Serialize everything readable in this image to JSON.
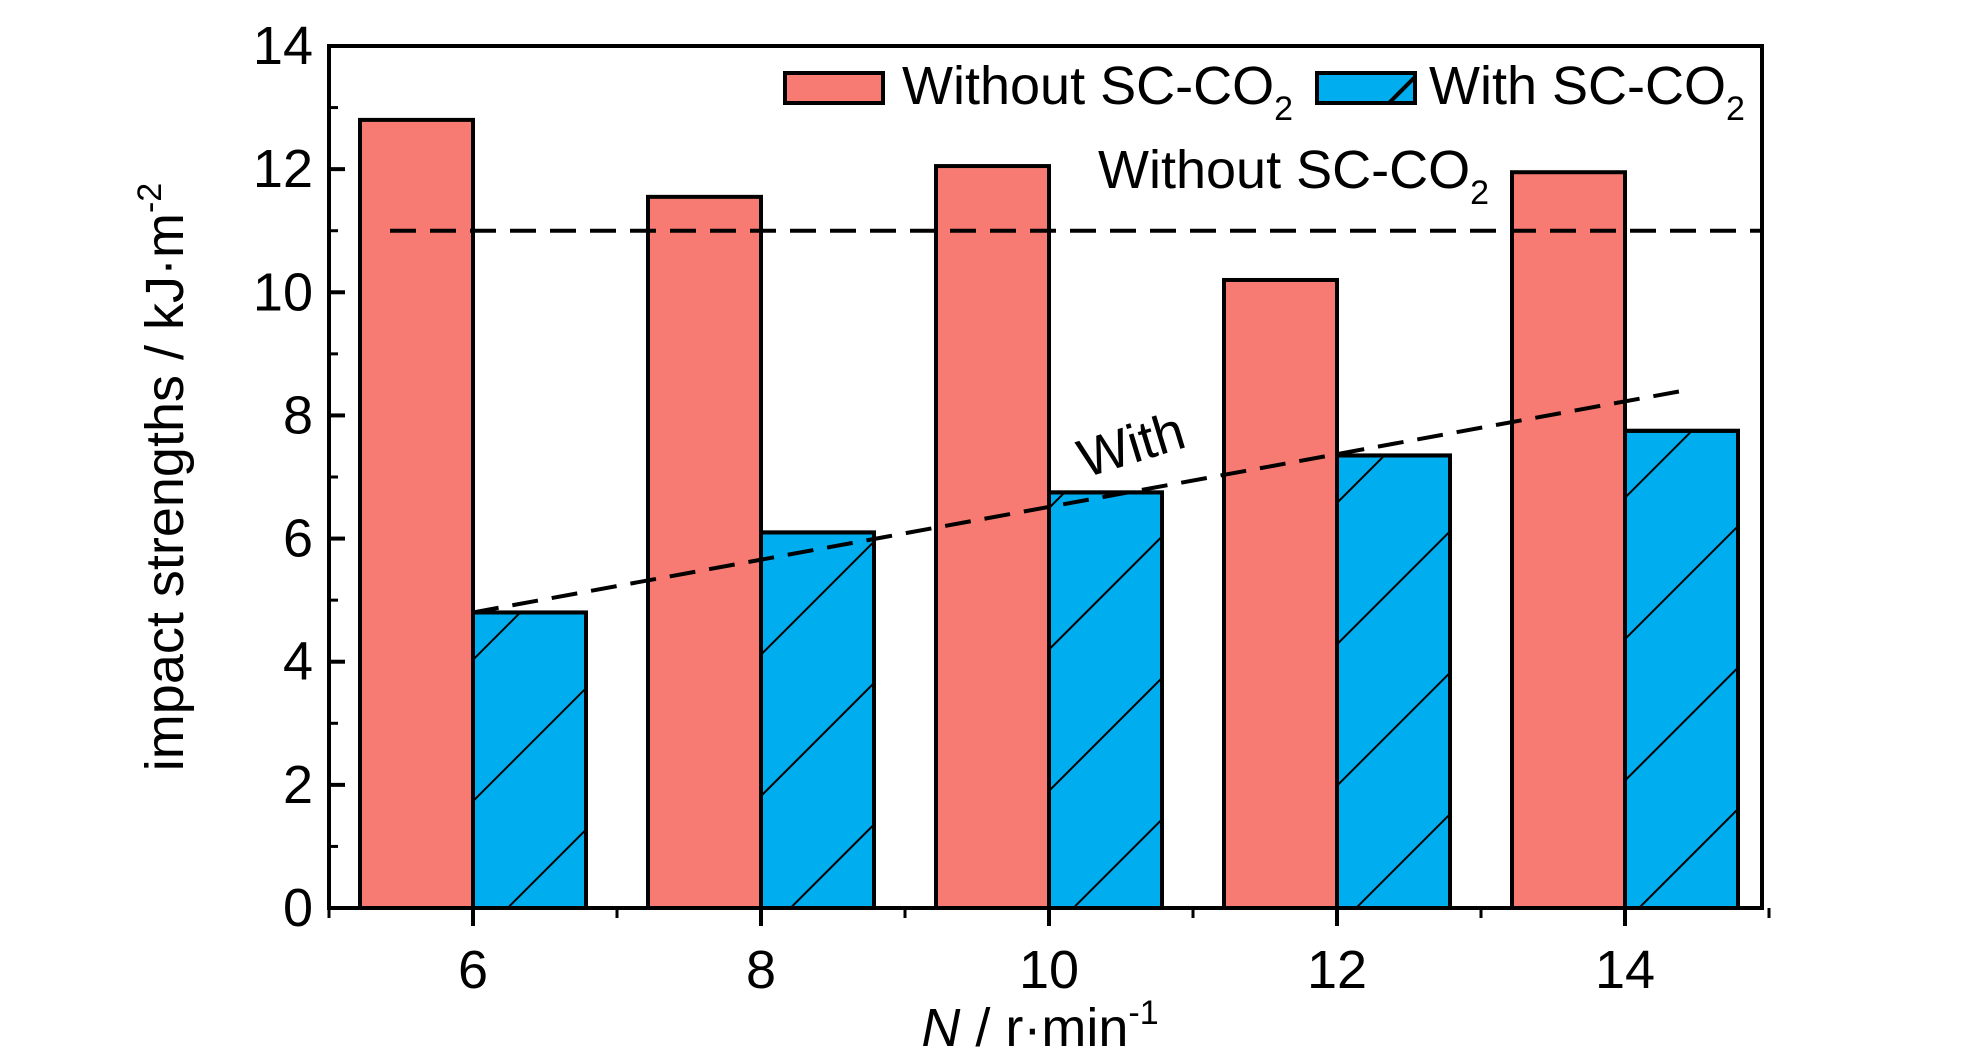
{
  "chart_data": {
    "type": "bar",
    "x": [
      6,
      8,
      10,
      12,
      14
    ],
    "categories": [
      "6",
      "8",
      "10",
      "12",
      "14"
    ],
    "series": [
      {
        "name": "Without SC-CO₂",
        "values": [
          12.8,
          11.55,
          12.05,
          10.2,
          11.95
        ],
        "color": "#F77B72",
        "hatch": false
      },
      {
        "name": "With SC-CO₂",
        "values": [
          4.8,
          6.1,
          6.75,
          7.35,
          7.75
        ],
        "color": "#00AEEF",
        "hatch": true
      }
    ],
    "ylim": [
      0,
      14
    ],
    "yticks": [
      0,
      2,
      4,
      6,
      8,
      10,
      12,
      14
    ],
    "ylabel": {
      "text": "impact strengths / kJ·m",
      "superscript": "-2"
    },
    "xlabel": {
      "italic": "N",
      "text": " / r·min",
      "superscript": "-1"
    },
    "legend": {
      "position": "top-right",
      "entries": [
        {
          "prefix": "Without SC-CO",
          "subscript": "2"
        },
        {
          "prefix": "With SC-CO",
          "subscript": "2"
        }
      ]
    },
    "reference_lines": [
      {
        "kind": "horizontal",
        "y": 11.0,
        "style": "dashed"
      },
      {
        "kind": "trend",
        "from": [
          6,
          4.8
        ],
        "to": [
          14.4,
          8.4
        ],
        "style": "dashed"
      }
    ],
    "annotations": [
      {
        "prefix": "Without SC-CO",
        "subscript": "2"
      },
      {
        "text": "With"
      }
    ],
    "grid": false
  }
}
